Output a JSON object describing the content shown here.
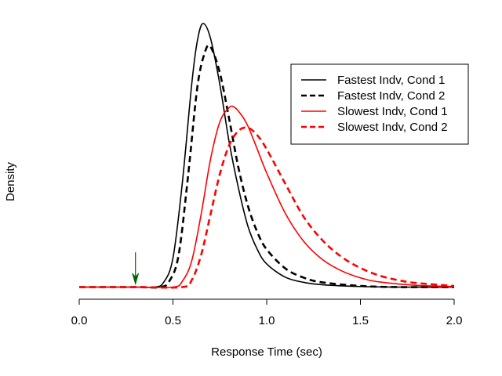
{
  "chart_data": {
    "type": "line",
    "xlabel": "Response Time (sec)",
    "ylabel": "Density",
    "xlim": [
      0.0,
      2.0
    ],
    "ylim": [
      0.0,
      4.7
    ],
    "x_ticks": [
      "0.0",
      "0.5",
      "1.0",
      "1.5",
      "2.0"
    ],
    "x_tick_values": [
      0.0,
      0.5,
      1.0,
      1.5,
      2.0
    ],
    "y_axis_ticks_shown": false,
    "grid": false,
    "legend_position": "top-right",
    "series": [
      {
        "name": "Fastest Indv, Cond 1",
        "color": "#000000",
        "dash": "solid",
        "x": [
          0.0,
          0.3,
          0.4,
          0.45,
          0.5,
          0.55,
          0.6,
          0.63,
          0.66,
          0.7,
          0.75,
          0.8,
          0.85,
          0.9,
          0.95,
          1.0,
          1.1,
          1.2,
          1.3,
          1.5,
          1.7,
          2.0
        ],
        "y": [
          0.0,
          0.0,
          0.0,
          0.08,
          0.5,
          1.8,
          3.5,
          4.25,
          4.55,
          4.3,
          3.5,
          2.5,
          1.7,
          1.05,
          0.65,
          0.4,
          0.17,
          0.08,
          0.04,
          0.01,
          0.0,
          0.0
        ]
      },
      {
        "name": "Fastest Indv, Cond 2",
        "color": "#000000",
        "dash": "dashed",
        "x": [
          0.0,
          0.3,
          0.43,
          0.48,
          0.53,
          0.58,
          0.63,
          0.67,
          0.7,
          0.75,
          0.8,
          0.85,
          0.9,
          0.95,
          1.0,
          1.1,
          1.2,
          1.3,
          1.5,
          1.7,
          2.0
        ],
        "y": [
          0.0,
          0.0,
          0.0,
          0.1,
          0.55,
          1.9,
          3.45,
          4.05,
          4.15,
          3.7,
          2.9,
          2.05,
          1.4,
          0.95,
          0.65,
          0.32,
          0.16,
          0.08,
          0.02,
          0.0,
          0.0
        ]
      },
      {
        "name": "Slowest Indv, Cond 1",
        "color": "#ff0000",
        "dash": "solid",
        "x": [
          0.0,
          0.3,
          0.5,
          0.55,
          0.6,
          0.65,
          0.7,
          0.75,
          0.8,
          0.83,
          0.87,
          0.9,
          0.95,
          1.0,
          1.1,
          1.2,
          1.3,
          1.4,
          1.5,
          1.6,
          1.8,
          2.0
        ],
        "y": [
          0.0,
          0.0,
          0.0,
          0.1,
          0.45,
          1.25,
          2.2,
          2.85,
          3.1,
          3.1,
          2.95,
          2.78,
          2.38,
          1.97,
          1.27,
          0.78,
          0.47,
          0.28,
          0.16,
          0.09,
          0.03,
          0.01
        ]
      },
      {
        "name": "Slowest Indv, Cond 2",
        "color": "#ff0000",
        "dash": "dashed",
        "x": [
          0.0,
          0.3,
          0.55,
          0.6,
          0.65,
          0.7,
          0.75,
          0.8,
          0.85,
          0.9,
          0.95,
          1.0,
          1.1,
          1.2,
          1.3,
          1.4,
          1.5,
          1.6,
          1.7,
          1.8,
          2.0
        ],
        "y": [
          0.0,
          0.0,
          0.0,
          0.12,
          0.55,
          1.25,
          1.95,
          2.45,
          2.7,
          2.75,
          2.62,
          2.38,
          1.78,
          1.2,
          0.8,
          0.52,
          0.33,
          0.2,
          0.12,
          0.07,
          0.02
        ]
      }
    ],
    "annotations": [
      {
        "type": "arrow",
        "color": "#006400",
        "x": 0.3,
        "y_from": 0.6,
        "y_to": 0.05
      }
    ]
  }
}
